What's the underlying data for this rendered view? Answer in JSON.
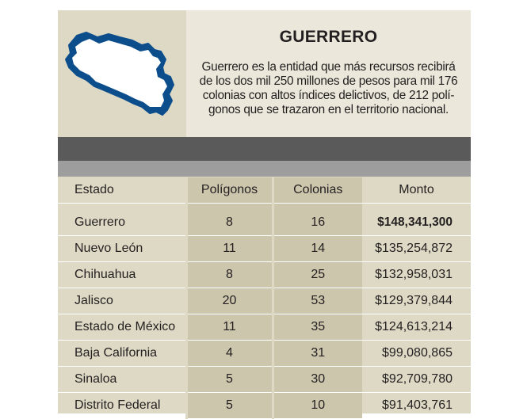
{
  "header": {
    "title": "GUERRERO",
    "summary_lines": [
      "Guerrero es la entidad que más recursos recibirá",
      "de los dos mil 250 millones de pesos para mil 176",
      "colonias con altos índices delictivos, de 212 polí-",
      "gonos que se trazaron en el territorio nacional."
    ],
    "map_icon": "guerrero-state-outline-icon",
    "map_color": "#0c4d8c"
  },
  "table": {
    "columns": [
      "Estado",
      "Polígonos",
      "Colonias",
      "Monto"
    ],
    "rows": [
      {
        "estado": "Guerrero",
        "poligonos": "8",
        "colonias": "16",
        "monto": "$148,341,300"
      },
      {
        "estado": "Nuevo León",
        "poligonos": "11",
        "colonias": "14",
        "monto": "$135,254,872"
      },
      {
        "estado": "Chihuahua",
        "poligonos": "8",
        "colonias": "25",
        "monto": "$132,958,031"
      },
      {
        "estado": "Jalisco",
        "poligonos": "20",
        "colonias": "53",
        "monto": "$129,379,844"
      },
      {
        "estado": "Estado de México",
        "poligonos": "11",
        "colonias": "35",
        "monto": "$124,613,214"
      },
      {
        "estado": "Baja California",
        "poligonos": "4",
        "colonias": "31",
        "monto": "$99,080,865"
      },
      {
        "estado": "Sinaloa",
        "poligonos": "5",
        "colonias": "30",
        "monto": "$92,709,780"
      },
      {
        "estado": "Distrito Federal",
        "poligonos": "5",
        "colonias": "10",
        "monto": "$91,403,761"
      }
    ]
  },
  "colors": {
    "panel_bg": "#ddd9c4",
    "info_bg": "#ebe8db",
    "column_shade": "#ccc6ad",
    "band_dark": "#5a5a5a",
    "band_light": "#9d9d9d"
  }
}
